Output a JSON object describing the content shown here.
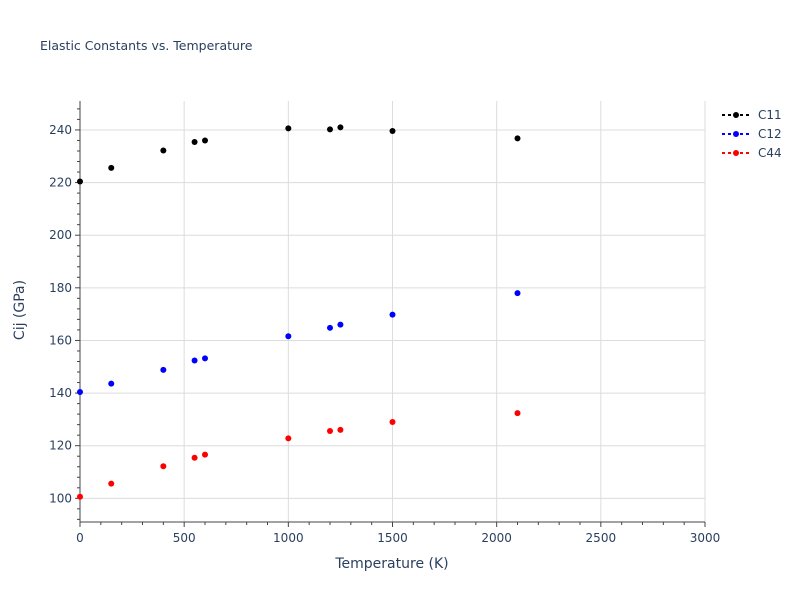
{
  "chart_data": {
    "type": "scatter",
    "title": "Elastic Constants vs. Temperature",
    "xlabel": "Temperature (K)",
    "ylabel": "Cij (GPa)",
    "xlim": [
      0,
      3000
    ],
    "ylim": [
      91,
      251
    ],
    "xticks": [
      0,
      500,
      1000,
      1500,
      2000,
      2500,
      3000
    ],
    "yticks": [
      100,
      120,
      140,
      160,
      180,
      200,
      220,
      240
    ],
    "grid": true,
    "legend_position": "top-right",
    "x": [
      0,
      150,
      400,
      550,
      600,
      1000,
      1200,
      1250,
      1500,
      2100
    ],
    "series": [
      {
        "name": "C11",
        "color": "#000000",
        "values": [
          220.4,
          225.6,
          232.2,
          235.4,
          236.0,
          240.6,
          240.2,
          241.0,
          239.6,
          236.8
        ]
      },
      {
        "name": "C12",
        "color": "#0000ff",
        "values": [
          140.4,
          143.6,
          148.8,
          152.4,
          153.2,
          161.6,
          164.8,
          166.0,
          169.8,
          178.0
        ]
      },
      {
        "name": "C44",
        "color": "#ff0000",
        "values": [
          100.6,
          105.6,
          112.2,
          115.4,
          116.6,
          122.8,
          125.6,
          126.0,
          129.0,
          132.4
        ]
      }
    ]
  }
}
